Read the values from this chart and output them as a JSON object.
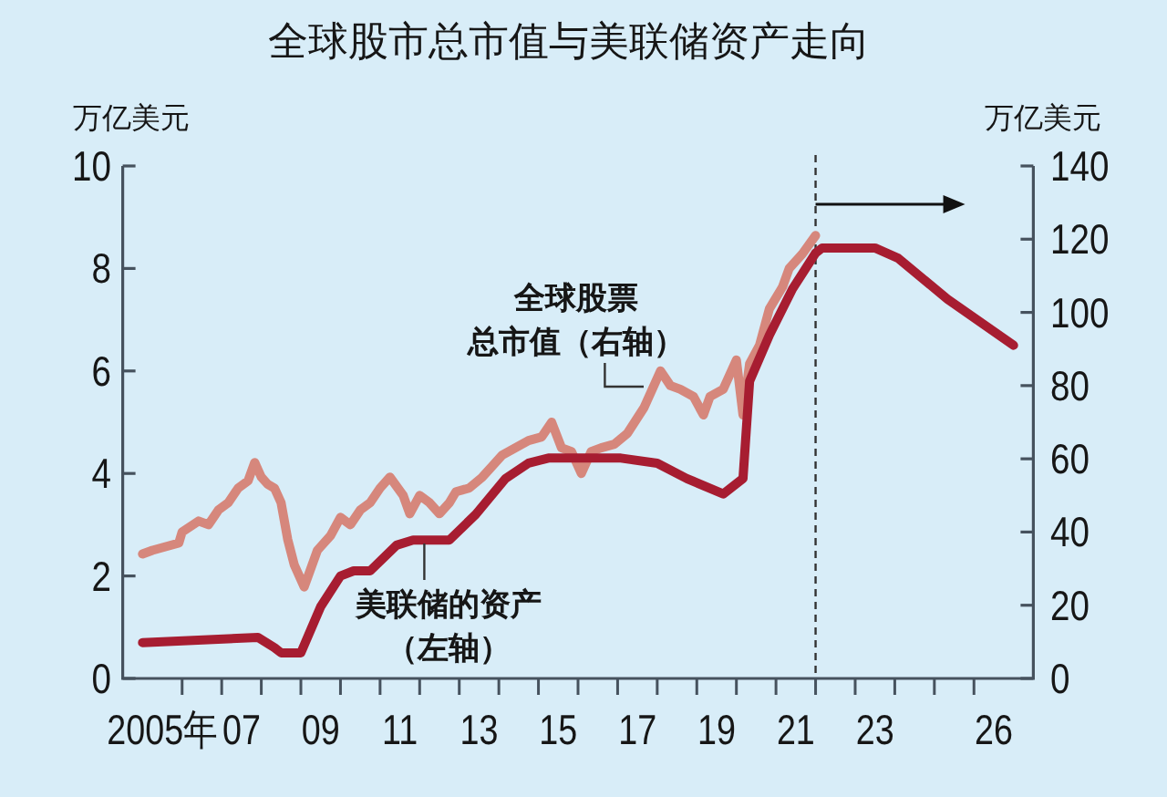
{
  "chart_data": {
    "type": "line",
    "title": "全球股市总市值与美联储资产走向",
    "ylabel": "万亿美元",
    "y2label": "万亿美元",
    "xlim": [
      "2004-07",
      "2027-07"
    ],
    "xticks": [
      {
        "value": "2005-07",
        "label": "2005年"
      },
      {
        "value": "2006",
        "label": null
      },
      {
        "value": "2007",
        "label": null
      },
      {
        "value": "2007-07",
        "label": "07"
      },
      {
        "value": "2008",
        "label": null
      },
      {
        "value": "2009",
        "label": null
      },
      {
        "value": "2009-07",
        "label": "09"
      },
      {
        "value": "2010",
        "label": null
      },
      {
        "value": "2011",
        "label": null
      },
      {
        "value": "2011-07",
        "label": "11"
      },
      {
        "value": "2012",
        "label": null
      },
      {
        "value": "2013",
        "label": null
      },
      {
        "value": "2013-07",
        "label": "13"
      },
      {
        "value": "2014",
        "label": null
      },
      {
        "value": "2015",
        "label": null
      },
      {
        "value": "2015-07",
        "label": "15"
      },
      {
        "value": "2016",
        "label": null
      },
      {
        "value": "2017",
        "label": null
      },
      {
        "value": "2017-07",
        "label": "17"
      },
      {
        "value": "2018",
        "label": null
      },
      {
        "value": "2019",
        "label": null
      },
      {
        "value": "2019-07",
        "label": "19"
      },
      {
        "value": "2020",
        "label": null
      },
      {
        "value": "2021",
        "label": null
      },
      {
        "value": "2021-07",
        "label": "21"
      },
      {
        "value": "2022",
        "label": null
      },
      {
        "value": "2023",
        "label": null
      },
      {
        "value": "2023-07",
        "label": "23"
      },
      {
        "value": "2024",
        "label": null
      },
      {
        "value": "2025",
        "label": null
      },
      {
        "value": "2026",
        "label": null
      },
      {
        "value": "2026-07",
        "label": "26"
      }
    ],
    "ylim": [
      0,
      10
    ],
    "yticks": [
      0,
      2,
      4,
      6,
      8,
      10
    ],
    "y2lim": [
      0,
      140
    ],
    "y2ticks": [
      0,
      20,
      40,
      60,
      80,
      100,
      120,
      140
    ],
    "ref_lines": [
      {
        "axis": "x",
        "value": "2022",
        "color": "#333333",
        "line_style": "dashed"
      }
    ],
    "series": [
      {
        "name": "全球股票总市值（右轴）",
        "axis": "y2",
        "color": "#d6877c",
        "x": [
          "2005-01",
          "2005-04",
          "2005-08",
          "2005-12",
          "2006-01",
          "2006-06",
          "2006-09",
          "2006-12",
          "2007-03",
          "2007-06",
          "2007-09",
          "2007-11",
          "2008-01",
          "2008-03",
          "2008-05",
          "2008-07",
          "2008-09",
          "2008-11",
          "2009-02",
          "2009-06",
          "2009-10",
          "2010-01",
          "2010-04",
          "2010-07",
          "2010-10",
          "2011-01",
          "2011-04",
          "2011-08",
          "2011-10",
          "2012-01",
          "2012-04",
          "2012-07",
          "2012-10",
          "2012-12",
          "2013-04",
          "2013-08",
          "2013-10",
          "2014-02",
          "2014-06",
          "2014-10",
          "2015-02",
          "2015-05",
          "2015-08",
          "2015-11",
          "2016-02",
          "2016-05",
          "2016-08",
          "2016-12",
          "2017-04",
          "2017-09",
          "2018-02",
          "2018-05",
          "2018-08",
          "2018-12",
          "2019-03",
          "2019-05",
          "2019-09",
          "2020-01",
          "2020-03",
          "2020-05",
          "2020-08",
          "2020-11",
          "2021-03",
          "2021-05",
          "2021-09",
          "2022-01"
        ],
        "values": [
          34,
          35,
          36,
          37,
          40,
          43,
          42,
          46,
          48,
          52,
          54,
          59,
          55,
          53,
          52,
          48,
          38,
          31,
          25,
          35,
          39,
          44,
          42,
          46,
          48,
          52,
          55,
          50,
          45,
          50,
          48,
          45,
          48,
          51,
          52,
          55,
          57,
          61,
          63,
          65,
          66,
          70,
          63,
          62,
          56,
          62,
          63,
          64,
          67,
          74,
          84,
          80,
          79,
          77,
          72,
          77,
          79,
          87,
          72,
          86,
          91,
          101,
          107,
          112,
          116,
          121
        ]
      },
      {
        "name": "美联储的资产（左轴）",
        "color": "#a71d31",
        "x": [
          "2005-01",
          "2007-12",
          "2008-05",
          "2008-07",
          "2009-01",
          "2009-07",
          "2010-01",
          "2010-05",
          "2010-10",
          "2011-06",
          "2011-11",
          "2012-10",
          "2013-06",
          "2014-03",
          "2014-10",
          "2015-04",
          "2017-02",
          "2018-01",
          "2018-10",
          "2019-09",
          "2020-03",
          "2020-05",
          "2020-11",
          "2021-06",
          "2022-01",
          "2022-03",
          "2023-07",
          "2024-02",
          "2025-05",
          "2027-01"
        ],
        "values": [
          0.7,
          0.8,
          0.6,
          0.5,
          0.5,
          1.4,
          2.0,
          2.1,
          2.1,
          2.6,
          2.7,
          2.7,
          3.2,
          3.9,
          4.2,
          4.3,
          4.3,
          4.2,
          3.9,
          3.6,
          3.9,
          5.8,
          6.7,
          7.6,
          8.3,
          8.4,
          8.4,
          8.2,
          7.4,
          6.5
        ]
      }
    ]
  }
}
